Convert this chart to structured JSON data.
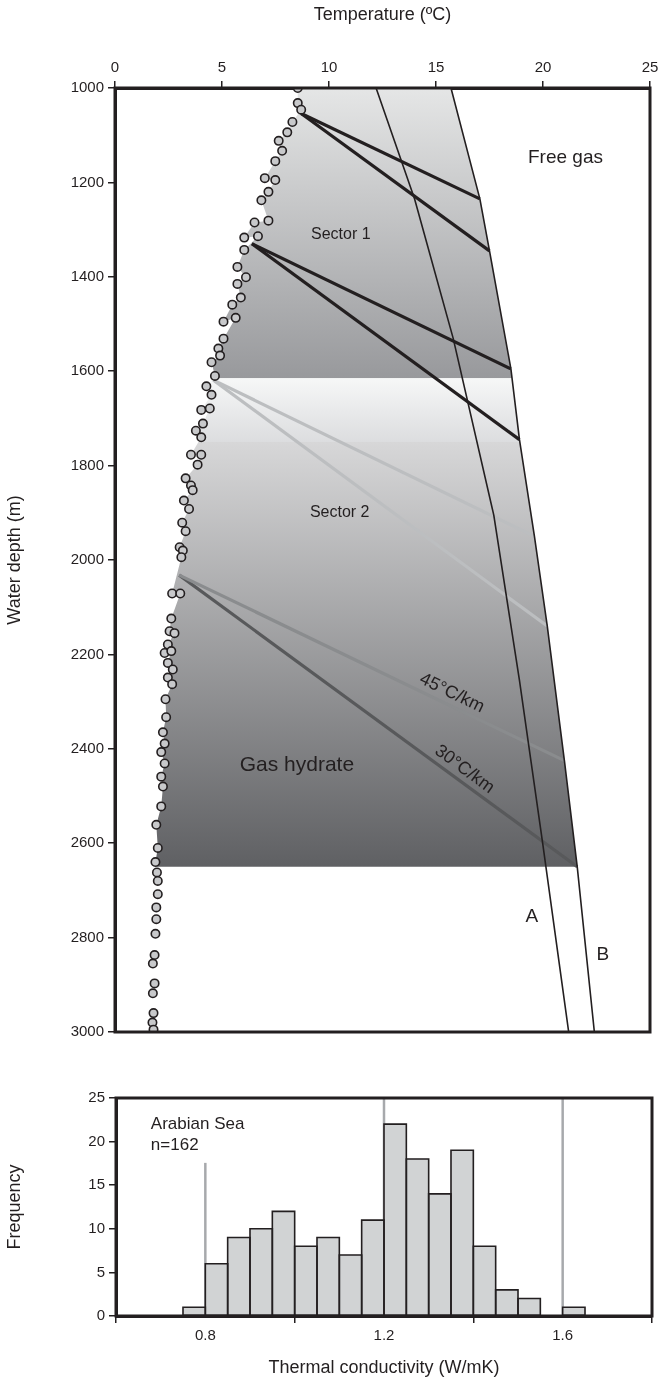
{
  "chart_data": [
    {
      "type": "scatter",
      "xlabel": "Temperature (ºC)",
      "ylabel": "Water depth (m)",
      "xlim": [
        0,
        25
      ],
      "xticks": [
        0,
        5,
        10,
        15,
        20,
        25
      ],
      "ylim": [
        3000,
        1000
      ],
      "yticks": [
        1000,
        1200,
        1400,
        1600,
        1800,
        2000,
        2200,
        2400,
        2600,
        2800,
        3000
      ],
      "grid": false,
      "legend": false,
      "series": [
        {
          "type": "scatter",
          "marker": "circle",
          "color": "#c8c9cb",
          "x": [
            8.54,
            8.54,
            8.7,
            8.29,
            8.05,
            7.65,
            7.81,
            7.49,
            7.0,
            7.49,
            7.17,
            6.84,
            7.17,
            6.52,
            6.04,
            6.68,
            6.04,
            5.72,
            6.12,
            5.72,
            5.88,
            5.48,
            5.07,
            5.64,
            5.07,
            4.83,
            4.91,
            4.51,
            4.67,
            4.27,
            4.51,
            4.03,
            4.43,
            4.11,
            3.78,
            4.03,
            3.55,
            4.03,
            3.86,
            3.3,
            3.55,
            3.63,
            3.22,
            3.46,
            3.14,
            3.3,
            3.02,
            3.17,
            3.1,
            2.67,
            3.05,
            2.63,
            2.55,
            2.78,
            2.47,
            2.32,
            2.63,
            2.47,
            2.7,
            2.47,
            2.67,
            2.36,
            2.39,
            2.24,
            2.32,
            2.16,
            2.32,
            2.16,
            2.24,
            2.16,
            1.93,
            2.0,
            1.89,
            1.96,
            2.0,
            2.0,
            1.93,
            1.93,
            1.89,
            1.85,
            1.77,
            1.85,
            1.77,
            1.8,
            1.75,
            1.8
          ],
          "values": [
            1000,
            1032,
            1046,
            1072,
            1094,
            1112,
            1133,
            1155,
            1191,
            1195,
            1220,
            1238,
            1281,
            1285,
            1317,
            1314,
            1343,
            1379,
            1401,
            1415,
            1444,
            1459,
            1495,
            1487,
            1531,
            1552,
            1567,
            1581,
            1610,
            1632,
            1650,
            1682,
            1679,
            1711,
            1726,
            1740,
            1777,
            1777,
            1798,
            1827,
            1842,
            1852,
            1874,
            1892,
            1921,
            1939,
            1973,
            1980,
            1994,
            2071,
            2071,
            2124,
            2151,
            2155,
            2179,
            2197,
            2193,
            2218,
            2232,
            2249,
            2263,
            2295,
            2333,
            2365,
            2389,
            2407,
            2431,
            2459,
            2480,
            2522,
            2561,
            2610,
            2640,
            2662,
            2680,
            2708,
            2736,
            2761,
            2792,
            2837,
            2855,
            2897,
            2918,
            2960,
            2980,
            2995
          ]
        },
        {
          "type": "line",
          "color": "#231f20",
          "x": [
            12.2,
            14.0,
            15.8,
            17.7,
            18.9,
            20.0,
            21.2
          ],
          "values": [
            1000,
            1235,
            1530,
            1905,
            2255,
            2605,
            3000
          ]
        },
        {
          "type": "line",
          "color": "#231f20",
          "x": [
            15.7,
            17.05,
            17.5,
            18.5,
            18.9,
            19.6,
            20.2,
            21.0,
            21.6,
            22.4
          ],
          "values": [
            1000,
            1235,
            1345,
            1595,
            1745,
            1950,
            2140,
            2425,
            2650,
            3000
          ]
        },
        {
          "type": "line",
          "color": "#231f20",
          "x": [
            8.7,
            17.05
          ],
          "values": [
            1054,
            1235
          ]
        },
        {
          "type": "line",
          "color": "#231f20",
          "x": [
            8.7,
            17.5
          ],
          "values": [
            1054,
            1345
          ]
        },
        {
          "type": "line",
          "color": "#231f20",
          "x": [
            6.4,
            18.5
          ],
          "values": [
            1330,
            1595
          ]
        },
        {
          "type": "line",
          "color": "#231f20",
          "x": [
            6.4,
            18.9
          ],
          "values": [
            1330,
            1745
          ]
        },
        {
          "type": "line",
          "color": "#bcbec0",
          "x": [
            4.6,
            19.6
          ],
          "values": [
            1619,
            1950
          ]
        },
        {
          "type": "line",
          "color": "#bcbec0",
          "x": [
            4.6,
            20.2
          ],
          "values": [
            1619,
            2140
          ]
        },
        {
          "type": "line",
          "color": "#8a8c8e",
          "x": [
            3.0,
            21.0
          ],
          "values": [
            2032,
            2425
          ]
        },
        {
          "type": "line",
          "color": "#58595b",
          "x": [
            3.0,
            21.6
          ],
          "values": [
            2032,
            2650
          ]
        }
      ],
      "bands": [
        {
          "axis": "y",
          "from": 1000,
          "to": 1615,
          "color": "#98999c"
        },
        {
          "axis": "y",
          "from": 1615,
          "to": 1750,
          "color": "#dcdddf"
        },
        {
          "axis": "y",
          "from": 1750,
          "to": 2650,
          "color": "#5f6063"
        }
      ],
      "annotations": [
        "Free gas",
        "Sector 1",
        "Sector 2",
        "Gas hydrate",
        "A",
        "B",
        {
          "text": "45°C/km",
          "x": 15.5,
          "y": 2305
        },
        {
          "text": "30°C/km",
          "x": 16.0,
          "y": 2464
        }
      ]
    },
    {
      "type": "histogram",
      "xlabel": "Thermal conductivity (W/mK)",
      "ylabel": "Frequency",
      "color": "#d1d3d4",
      "xlim": [
        0.6,
        1.8
      ],
      "xticks": [
        0.8,
        1.2,
        1.6
      ],
      "ylim": [
        0,
        25
      ],
      "yticks": [
        0,
        5,
        10,
        15,
        20,
        25
      ],
      "grid": false,
      "legend": false,
      "bins": [
        0.75,
        0.8,
        0.85,
        0.9,
        0.95,
        1.0,
        1.05,
        1.1,
        1.15,
        1.2,
        1.25,
        1.3,
        1.35,
        1.4,
        1.45,
        1.5,
        1.55,
        1.6,
        1.65
      ],
      "values": [
        1,
        6,
        9,
        10,
        12,
        8,
        9,
        7,
        11,
        22,
        18,
        14,
        19,
        8,
        3,
        2,
        0,
        1
      ],
      "ref_lines": [
        {
          "axis": "x",
          "value": 0.8,
          "color": "#a7a9ac"
        },
        {
          "axis": "x",
          "value": 1.2,
          "color": "#a7a9ac"
        },
        {
          "axis": "x",
          "value": 1.6,
          "color": "#a7a9ac"
        }
      ],
      "annotations": [
        "Arabian Sea",
        "n=162"
      ]
    }
  ]
}
